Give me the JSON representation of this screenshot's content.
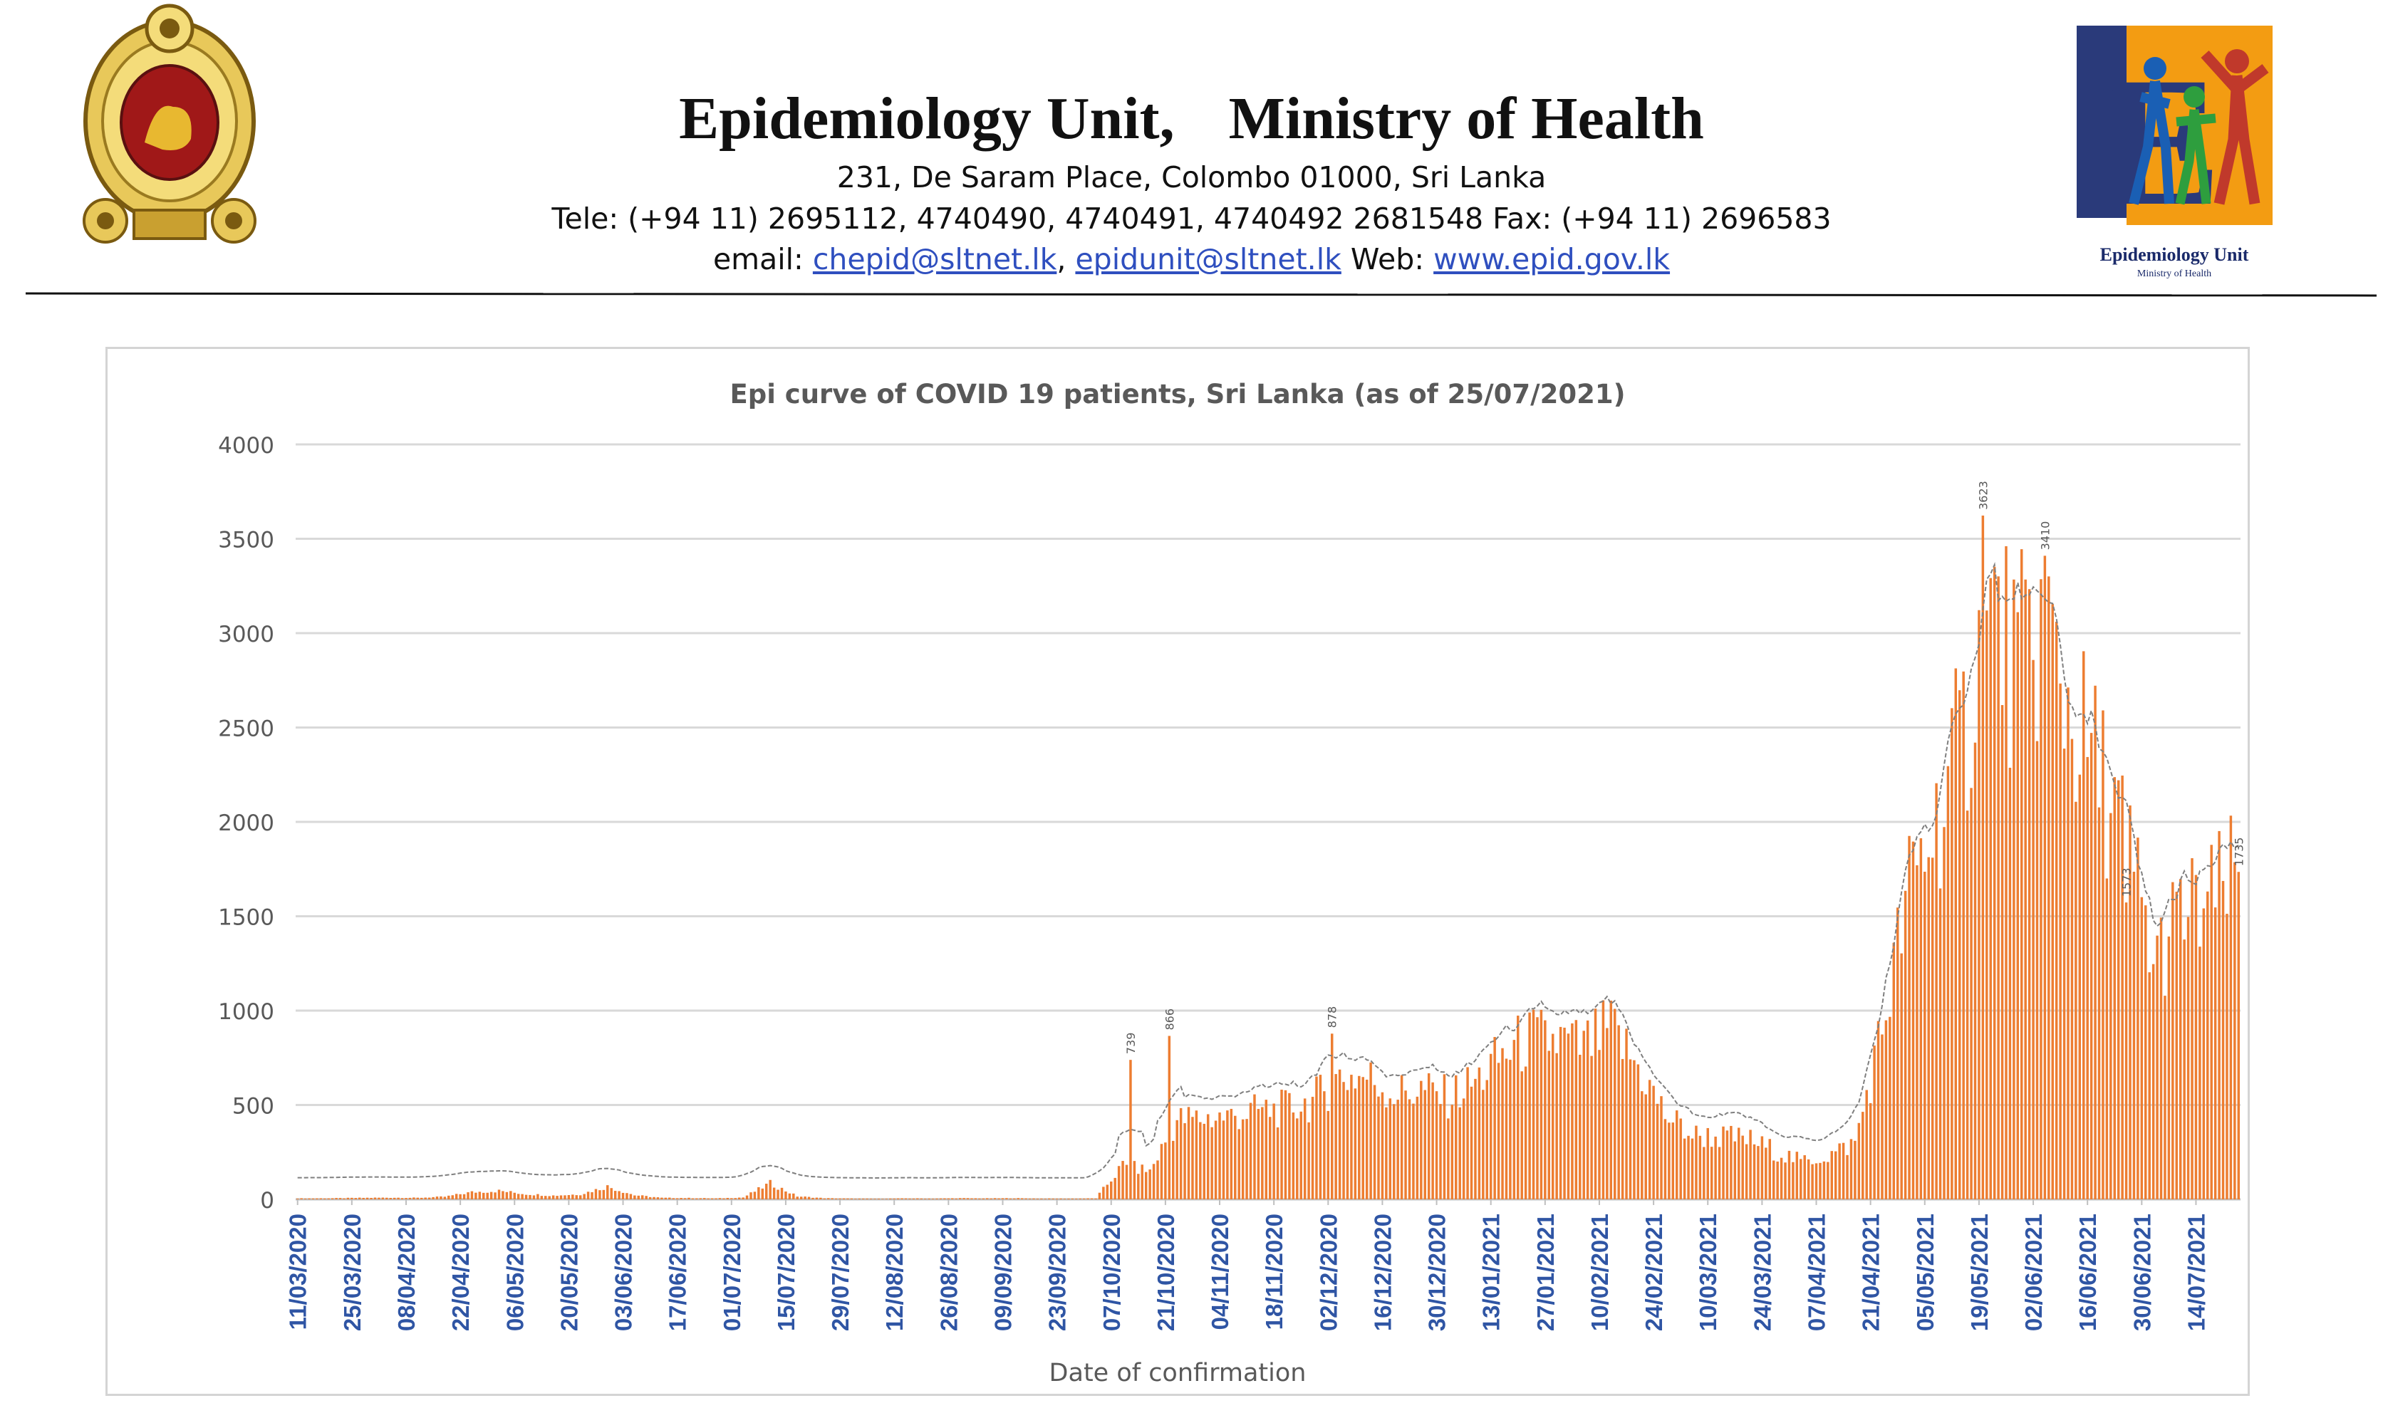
{
  "header": {
    "org_left": "Epidemiology Unit,",
    "org_right": "Ministry of Health",
    "address": "231, De Saram Place, Colombo 01000, Sri Lanka",
    "tele": "Tele: (+94 11) 2695112, 4740490, 4740491, 4740492 2681548  Fax: (+94 11) 2696583",
    "email_prefix": "email: ",
    "email1": "chepid@sltnet.lk",
    "email_sep": ", ",
    "email2": "epidunit@sltnet.lk",
    "web_prefix": " Web: ",
    "web": "www.epid.gov.lk",
    "logo_caption": "Epidemiology Unit",
    "logo_subcaption": "Ministry of Health",
    "logo_letter": "E"
  },
  "chart_data": {
    "type": "bar",
    "title": "Epi curve of COVID 19 patients, Sri Lanka  (as of 25/07/2021)",
    "xlabel": "Date of confirmation",
    "ylabel": "",
    "ylim": [
      0,
      4000
    ],
    "yticks": [
      0,
      500,
      1000,
      1500,
      2000,
      2500,
      3000,
      3500,
      4000
    ],
    "x_start": "11/03/2020",
    "x_end": "25/07/2021",
    "x_ticks": [
      "11/03/2020",
      "25/03/2020",
      "08/04/2020",
      "22/04/2020",
      "06/05/2020",
      "20/05/2020",
      "03/06/2020",
      "17/06/2020",
      "01/07/2020",
      "15/07/2020",
      "29/07/2020",
      "12/08/2020",
      "26/08/2020",
      "09/09/2020",
      "23/09/2020",
      "07/10/2020",
      "21/10/2020",
      "04/11/2020",
      "18/11/2020",
      "02/12/2020",
      "16/12/2020",
      "30/12/2020",
      "13/01/2021",
      "27/01/2021",
      "10/02/2021",
      "24/02/2021",
      "10/03/2021",
      "24/03/2021",
      "07/04/2021",
      "21/04/2021",
      "05/05/2021",
      "19/05/2021",
      "02/06/2021",
      "16/06/2021",
      "30/06/2021",
      "14/07/2021"
    ],
    "bar_color": "#ed7d31",
    "trend_color": "#7f7f7f",
    "grid": true,
    "legend": "none",
    "weekly_series": [
      {
        "week_of": "11/03/2020",
        "mean_daily": 5
      },
      {
        "week_of": "18/03/2020",
        "mean_daily": 6
      },
      {
        "week_of": "25/03/2020",
        "mean_daily": 8
      },
      {
        "week_of": "01/04/2020",
        "mean_daily": 9
      },
      {
        "week_of": "08/04/2020",
        "mean_daily": 8
      },
      {
        "week_of": "15/04/2020",
        "mean_daily": 14
      },
      {
        "week_of": "22/04/2020",
        "mean_daily": 38
      },
      {
        "week_of": "29/04/2020",
        "mean_daily": 45
      },
      {
        "week_of": "06/05/2020",
        "mean_daily": 28
      },
      {
        "week_of": "13/05/2020",
        "mean_daily": 20
      },
      {
        "week_of": "20/05/2020",
        "mean_daily": 27
      },
      {
        "week_of": "27/05/2020",
        "mean_daily": 68
      },
      {
        "week_of": "03/06/2020",
        "mean_daily": 22
      },
      {
        "week_of": "10/06/2020",
        "mean_daily": 8
      },
      {
        "week_of": "17/06/2020",
        "mean_daily": 7
      },
      {
        "week_of": "24/06/2020",
        "mean_daily": 5
      },
      {
        "week_of": "01/07/2020",
        "mean_daily": 10
      },
      {
        "week_of": "08/07/2020",
        "mean_daily": 85
      },
      {
        "week_of": "15/07/2020",
        "mean_daily": 16
      },
      {
        "week_of": "22/07/2020",
        "mean_daily": 6
      },
      {
        "week_of": "29/07/2020",
        "mean_daily": 4
      },
      {
        "week_of": "05/08/2020",
        "mean_daily": 3
      },
      {
        "week_of": "12/08/2020",
        "mean_daily": 5
      },
      {
        "week_of": "19/08/2020",
        "mean_daily": 4
      },
      {
        "week_of": "26/08/2020",
        "mean_daily": 6
      },
      {
        "week_of": "02/09/2020",
        "mean_daily": 5
      },
      {
        "week_of": "09/09/2020",
        "mean_daily": 6
      },
      {
        "week_of": "16/09/2020",
        "mean_daily": 4
      },
      {
        "week_of": "23/09/2020",
        "mean_daily": 4
      },
      {
        "week_of": "30/09/2020",
        "mean_daily": 5
      },
      {
        "week_of": "07/10/2020",
        "mean_daily": 180
      },
      {
        "week_of": "14/10/2020",
        "mean_daily": 150
      },
      {
        "week_of": "21/10/2020",
        "mean_daily": 420
      },
      {
        "week_of": "28/10/2020",
        "mean_daily": 430
      },
      {
        "week_of": "04/11/2020",
        "mean_daily": 440
      },
      {
        "week_of": "11/11/2020",
        "mean_daily": 470
      },
      {
        "week_of": "18/11/2020",
        "mean_daily": 480
      },
      {
        "week_of": "25/11/2020",
        "mean_daily": 520
      },
      {
        "week_of": "02/12/2020",
        "mean_daily": 650
      },
      {
        "week_of": "09/12/2020",
        "mean_daily": 650
      },
      {
        "week_of": "16/12/2020",
        "mean_daily": 560
      },
      {
        "week_of": "23/12/2020",
        "mean_daily": 580
      },
      {
        "week_of": "30/12/2020",
        "mean_daily": 540
      },
      {
        "week_of": "06/01/2021",
        "mean_daily": 620
      },
      {
        "week_of": "13/01/2021",
        "mean_daily": 760
      },
      {
        "week_of": "20/01/2021",
        "mean_daily": 850
      },
      {
        "week_of": "27/01/2021",
        "mean_daily": 840
      },
      {
        "week_of": "03/02/2021",
        "mean_daily": 800
      },
      {
        "week_of": "10/02/2021",
        "mean_daily": 900
      },
      {
        "week_of": "17/02/2021",
        "mean_daily": 700
      },
      {
        "week_of": "24/02/2021",
        "mean_daily": 450
      },
      {
        "week_of": "03/03/2021",
        "mean_daily": 340
      },
      {
        "week_of": "10/03/2021",
        "mean_daily": 330
      },
      {
        "week_of": "17/03/2021",
        "mean_daily": 320
      },
      {
        "week_of": "24/03/2021",
        "mean_daily": 260
      },
      {
        "week_of": "31/03/2021",
        "mean_daily": 200
      },
      {
        "week_of": "07/04/2021",
        "mean_daily": 230
      },
      {
        "week_of": "14/04/2021",
        "mean_daily": 300
      },
      {
        "week_of": "21/04/2021",
        "mean_daily": 900
      },
      {
        "week_of": "28/04/2021",
        "mean_daily": 1650
      },
      {
        "week_of": "05/05/2021",
        "mean_daily": 2000
      },
      {
        "week_of": "12/05/2021",
        "mean_daily": 2450
      },
      {
        "week_of": "19/05/2021",
        "mean_daily": 3100
      },
      {
        "week_of": "26/05/2021",
        "mean_daily": 2800
      },
      {
        "week_of": "02/06/2021",
        "mean_daily": 3050
      },
      {
        "week_of": "09/06/2021",
        "mean_daily": 2550
      },
      {
        "week_of": "16/06/2021",
        "mean_daily": 2250
      },
      {
        "week_of": "23/06/2021",
        "mean_daily": 1950
      },
      {
        "week_of": "30/06/2021",
        "mean_daily": 1250
      },
      {
        "week_of": "07/07/2021",
        "mean_daily": 1500
      },
      {
        "week_of": "14/07/2021",
        "mean_daily": 1550
      },
      {
        "week_of": "21/07/2021",
        "mean_daily": 1700
      }
    ],
    "annotated_values": [
      {
        "date": "12/10/2020",
        "value": 739
      },
      {
        "date": "22/10/2020",
        "value": 866
      },
      {
        "date": "03/12/2020",
        "value": 878
      },
      {
        "date": "20/05/2021",
        "value": 3623
      },
      {
        "date": "05/06/2021",
        "value": 3410
      },
      {
        "date": "26/06/2021",
        "value": 1573
      },
      {
        "date": "25/07/2021",
        "value": 1735
      }
    ]
  }
}
